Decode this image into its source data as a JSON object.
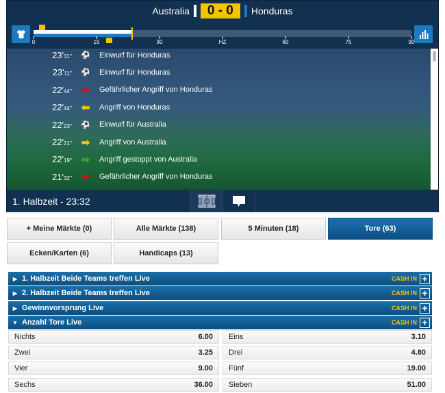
{
  "match": {
    "home": "Australia",
    "away": "Honduras",
    "score": "0 - 0",
    "home_color": "#ffffff",
    "away_color": "#1b7ac0"
  },
  "timeline": {
    "ticks": [
      "0",
      "15",
      "30",
      "HZ",
      "60",
      "75",
      "90"
    ],
    "current_minute": 23.5,
    "markers_home": [
      2
    ],
    "markers_away": [
      18
    ]
  },
  "events": [
    {
      "min": "23'",
      "sec": "31''",
      "icon": "throw-in-icon",
      "text": "Einwurf für Honduras"
    },
    {
      "min": "23'",
      "sec": "11''",
      "icon": "throw-in-icon",
      "text": "Einwurf für Honduras"
    },
    {
      "min": "22'",
      "sec": "44''",
      "icon": "arrow-left-red-icon",
      "text": "Gefährlicher Angriff von Honduras"
    },
    {
      "min": "22'",
      "sec": "44''",
      "icon": "arrow-left-yellow-icon",
      "text": "Angriff von Honduras"
    },
    {
      "min": "22'",
      "sec": "23''",
      "icon": "throw-in-icon",
      "text": "Einwurf für Australia"
    },
    {
      "min": "22'",
      "sec": "21''",
      "icon": "arrow-right-yellow-icon",
      "text": "Angriff von Australia"
    },
    {
      "min": "22'",
      "sec": "19''",
      "icon": "arrow-right-green-icon",
      "text": "Angriff gestoppt von Australia"
    },
    {
      "min": "21'",
      "sec": "32''",
      "icon": "arrow-left-red-icon",
      "text": "Gefährlicher Angriff von Honduras"
    }
  ],
  "footer": {
    "period": "1. Halbzeit - 23:32"
  },
  "tabs": [
    {
      "label": "+  Meine Märkte (0)"
    },
    {
      "label": "Alle Märkte (138)"
    },
    {
      "label": "5 Minuten (18)"
    },
    {
      "label": "Tore (63)",
      "active": true
    },
    {
      "label": "Ecken/Karten (6)"
    },
    {
      "label": "Handicaps (13)"
    }
  ],
  "markets": [
    {
      "title": "1. Halbzeit Beide Teams treffen Live",
      "cash": "CASH IN",
      "expanded": false
    },
    {
      "title": "2. Halbzeit Beide Teams treffen Live",
      "cash": "CASH IN",
      "expanded": false
    },
    {
      "title": "Gewinnvorsprung Live",
      "cash": "CASH IN",
      "expanded": false
    },
    {
      "title": "Anzahl Tore Live",
      "cash": "CASH IN",
      "expanded": true
    }
  ],
  "odds": [
    {
      "label": "Nichts",
      "value": "6.00"
    },
    {
      "label": "Eins",
      "value": "3.10"
    },
    {
      "label": "Zwei",
      "value": "3.25"
    },
    {
      "label": "Drei",
      "value": "4.80"
    },
    {
      "label": "Vier",
      "value": "9.00"
    },
    {
      "label": "Fünf",
      "value": "19.00"
    },
    {
      "label": "Sechs",
      "value": "36.00"
    },
    {
      "label": "Sieben",
      "value": "51.00"
    }
  ]
}
